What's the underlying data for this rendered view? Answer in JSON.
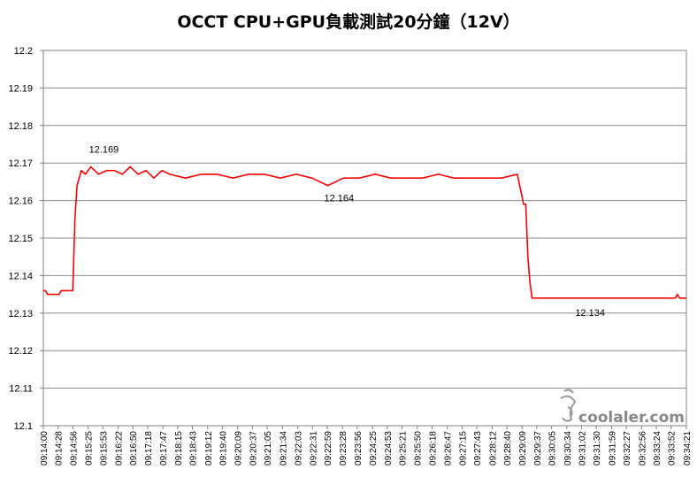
{
  "chart_data": {
    "type": "line",
    "title": "OCCT CPU+GPU負載測試20分鐘（12V）",
    "xlabel": "",
    "ylabel": "",
    "ylim": [
      12.1,
      12.2
    ],
    "yticks": [
      "12.1",
      "12.11",
      "12.12",
      "12.13",
      "12.14",
      "12.15",
      "12.16",
      "12.17",
      "12.18",
      "12.19",
      "12.2"
    ],
    "grid": true,
    "legend": "none",
    "x_tick_labels": [
      "09:14:00",
      "09:14:28",
      "09:14:56",
      "09:15:25",
      "09:15:53",
      "09:16:22",
      "09:16:50",
      "09:17:18",
      "09:17:47",
      "09:18:15",
      "09:18:43",
      "09:19:12",
      "09:19:40",
      "09:20:09",
      "09:20:37",
      "09:21:05",
      "09:21:34",
      "09:22:03",
      "09:22:31",
      "09:22:59",
      "09:23:28",
      "09:23:56",
      "09:24:25",
      "09:24:53",
      "09:25:21",
      "09:25:50",
      "09:26:18",
      "09:26:47",
      "09:27:15",
      "09:27:43",
      "09:28:12",
      "09:28:40",
      "09:29:09",
      "09:29:37",
      "09:30:05",
      "09:30:34",
      "09:31:02",
      "09:31:30",
      "09:31:59",
      "09:32:27",
      "09:32:56",
      "09:33:24",
      "09:33:52",
      "09:34:21"
    ],
    "series": [
      {
        "color": "#ff0000",
        "x": [
          "09:14:00",
          "09:14:04",
          "09:14:08",
          "09:14:30",
          "09:14:34",
          "09:14:52",
          "09:14:56",
          "09:15:00",
          "09:15:04",
          "09:15:08",
          "09:15:12",
          "09:15:20",
          "09:15:30",
          "09:15:45",
          "09:16:00",
          "09:16:15",
          "09:16:30",
          "09:16:45",
          "09:17:00",
          "09:17:15",
          "09:17:30",
          "09:17:45",
          "09:18:00",
          "09:18:30",
          "09:19:00",
          "09:19:30",
          "09:20:00",
          "09:20:30",
          "09:21:00",
          "09:21:30",
          "09:22:00",
          "09:22:30",
          "09:23:00",
          "09:23:30",
          "09:24:00",
          "09:24:30",
          "09:25:00",
          "09:25:30",
          "09:26:00",
          "09:26:30",
          "09:27:00",
          "09:27:30",
          "09:28:00",
          "09:28:30",
          "09:29:00",
          "09:29:12",
          "09:29:16",
          "09:29:20",
          "09:29:24",
          "09:29:28",
          "09:29:34",
          "09:29:40",
          "09:30:00",
          "09:31:00",
          "09:32:00",
          "09:33:00",
          "09:34:00",
          "09:34:04",
          "09:34:08",
          "09:34:21"
        ],
        "y": [
          12.136,
          12.136,
          12.135,
          12.135,
          12.136,
          12.136,
          12.136,
          12.155,
          12.164,
          12.166,
          12.168,
          12.167,
          12.169,
          12.167,
          12.168,
          12.168,
          12.167,
          12.169,
          12.167,
          12.168,
          12.166,
          12.168,
          12.167,
          12.166,
          12.167,
          12.167,
          12.166,
          12.167,
          12.167,
          12.166,
          12.167,
          12.166,
          12.164,
          12.166,
          12.166,
          12.167,
          12.166,
          12.166,
          12.166,
          12.167,
          12.166,
          12.166,
          12.166,
          12.166,
          12.167,
          12.159,
          12.159,
          12.145,
          12.138,
          12.134,
          12.134,
          12.134,
          12.134,
          12.134,
          12.134,
          12.134,
          12.134,
          12.135,
          12.134,
          12.134
        ]
      }
    ],
    "annotations": [
      {
        "text": "12.169",
        "x": "09:15:30",
        "y": 12.169
      },
      {
        "text": "12.164",
        "x": "09:23:00",
        "y": 12.164
      },
      {
        "text": "12.134",
        "x": "09:31:00",
        "y": 12.134
      }
    ]
  },
  "watermark": {
    "text": "coolaler.com"
  }
}
